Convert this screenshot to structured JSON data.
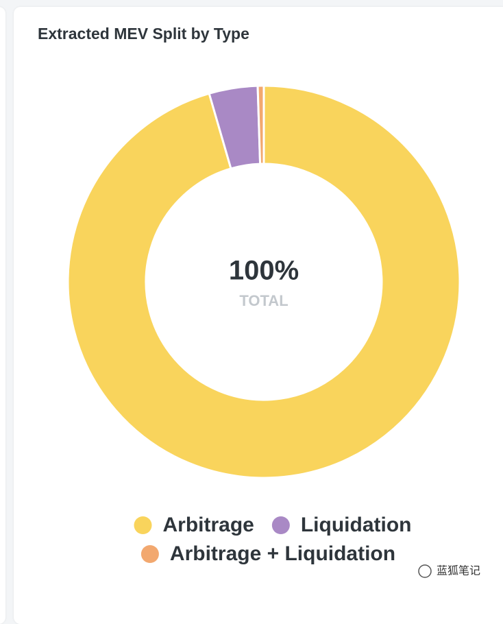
{
  "chart_data": {
    "type": "donut",
    "title": "Extracted MEV Split by Type",
    "categories": [
      "Arbitrage",
      "Liquidation",
      "Arbitrage + Liquidation"
    ],
    "values": [
      95.5,
      4,
      0.5
    ],
    "colors": [
      "#f9d45c",
      "#a989c5",
      "#f2a86f"
    ],
    "center_value": "100%",
    "center_caption": "TOTAL"
  },
  "watermark": "蓝狐笔记"
}
